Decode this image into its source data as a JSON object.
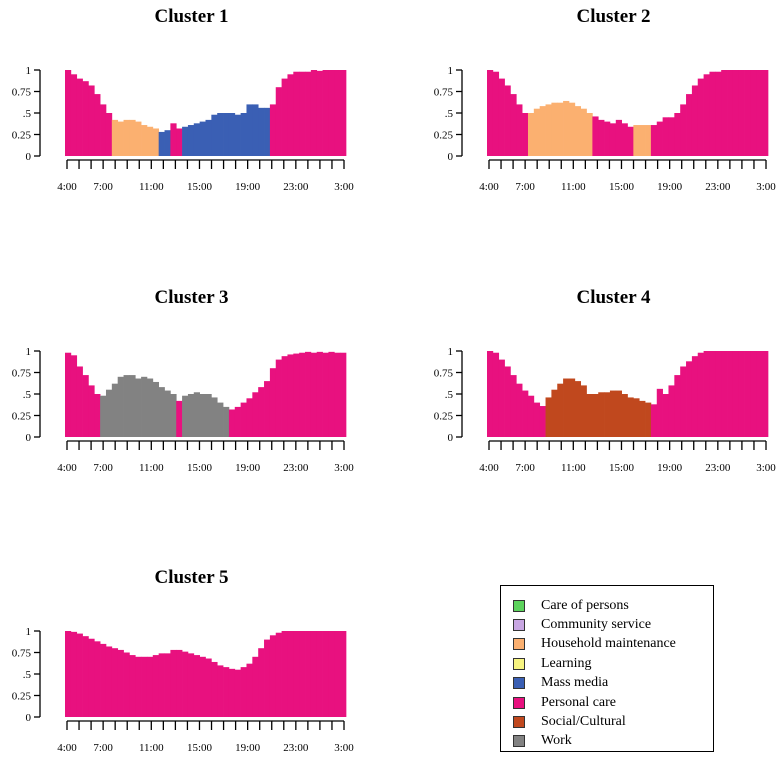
{
  "chart_data": {
    "type": "bar",
    "stacked_fill": true,
    "x": [
      "4:00",
      "4:30",
      "5:00",
      "5:30",
      "6:00",
      "6:30",
      "7:00",
      "7:30",
      "8:00",
      "8:30",
      "9:00",
      "9:30",
      "10:00",
      "10:30",
      "11:00",
      "11:30",
      "12:00",
      "12:30",
      "13:00",
      "13:30",
      "14:00",
      "14:30",
      "15:00",
      "15:30",
      "16:00",
      "16:30",
      "17:00",
      "17:30",
      "18:00",
      "18:30",
      "19:00",
      "19:30",
      "20:00",
      "20:30",
      "21:00",
      "21:30",
      "22:00",
      "22:30",
      "23:00",
      "23:30",
      "0:00",
      "0:30",
      "1:00",
      "1:30",
      "2:00",
      "2:30",
      "3:00",
      "3:30"
    ],
    "xtick_labels": [
      "4:00",
      "7:00",
      "11:00",
      "15:00",
      "19:00",
      "23:00",
      "3:00"
    ],
    "ytick_labels": [
      "1",
      "0.75",
      ".5",
      "0.25",
      "0"
    ],
    "ylim": [
      0,
      1
    ],
    "colors": {
      "Care of persons": "#5cd35c",
      "Community service": "#c8a6e2",
      "Household maintenance": "#fbb070",
      "Learning": "#f7f480",
      "Mass media": "#3a5fb4",
      "Personal care": "#e8117f",
      "Social/Cultural": "#c0481e",
      "Work": "#828282"
    },
    "legend": {
      "position": "bottom-right",
      "items": [
        "Care of persons",
        "Community service",
        "Household maintenance",
        "Learning",
        "Mass media",
        "Personal care",
        "Social/Cultural",
        "Work"
      ]
    },
    "panels": [
      {
        "title": "Cluster 1",
        "values": [
          1,
          0.95,
          0.9,
          0.87,
          0.82,
          0.72,
          0.6,
          0.5,
          0.42,
          0.4,
          0.42,
          0.42,
          0.4,
          0.36,
          0.34,
          0.32,
          0.28,
          0.3,
          0.38,
          0.32,
          0.34,
          0.36,
          0.38,
          0.4,
          0.42,
          0.48,
          0.5,
          0.5,
          0.5,
          0.48,
          0.5,
          0.6,
          0.6,
          0.56,
          0.56,
          0.6,
          0.8,
          0.9,
          0.95,
          0.98,
          0.98,
          0.98,
          1,
          0.99,
          1,
          1,
          1,
          1
        ],
        "activities": [
          "Personal care",
          "Personal care",
          "Personal care",
          "Personal care",
          "Personal care",
          "Personal care",
          "Personal care",
          "Personal care",
          "Household maintenance",
          "Household maintenance",
          "Household maintenance",
          "Household maintenance",
          "Household maintenance",
          "Household maintenance",
          "Household maintenance",
          "Household maintenance",
          "Mass media",
          "Mass media",
          "Personal care",
          "Personal care",
          "Mass media",
          "Mass media",
          "Mass media",
          "Mass media",
          "Mass media",
          "Mass media",
          "Mass media",
          "Mass media",
          "Mass media",
          "Mass media",
          "Mass media",
          "Mass media",
          "Mass media",
          "Mass media",
          "Mass media",
          "Personal care",
          "Personal care",
          "Personal care",
          "Personal care",
          "Personal care",
          "Personal care",
          "Personal care",
          "Personal care",
          "Personal care",
          "Personal care",
          "Personal care",
          "Personal care",
          "Personal care"
        ]
      },
      {
        "title": "Cluster 2",
        "values": [
          1,
          0.98,
          0.9,
          0.82,
          0.72,
          0.6,
          0.5,
          0.5,
          0.55,
          0.58,
          0.6,
          0.62,
          0.62,
          0.64,
          0.62,
          0.58,
          0.55,
          0.5,
          0.46,
          0.42,
          0.4,
          0.38,
          0.42,
          0.38,
          0.34,
          0.36,
          0.36,
          0.36,
          0.36,
          0.4,
          0.45,
          0.45,
          0.5,
          0.6,
          0.72,
          0.82,
          0.9,
          0.95,
          0.98,
          0.98,
          1,
          1,
          1,
          1,
          1,
          1,
          1,
          1
        ],
        "activities": [
          "Personal care",
          "Personal care",
          "Personal care",
          "Personal care",
          "Personal care",
          "Personal care",
          "Personal care",
          "Household maintenance",
          "Household maintenance",
          "Household maintenance",
          "Household maintenance",
          "Household maintenance",
          "Household maintenance",
          "Household maintenance",
          "Household maintenance",
          "Household maintenance",
          "Household maintenance",
          "Household maintenance",
          "Personal care",
          "Personal care",
          "Personal care",
          "Personal care",
          "Personal care",
          "Personal care",
          "Personal care",
          "Household maintenance",
          "Household maintenance",
          "Household maintenance",
          "Personal care",
          "Personal care",
          "Personal care",
          "Personal care",
          "Personal care",
          "Personal care",
          "Personal care",
          "Personal care",
          "Personal care",
          "Personal care",
          "Personal care",
          "Personal care",
          "Personal care",
          "Personal care",
          "Personal care",
          "Personal care",
          "Personal care",
          "Personal care",
          "Personal care",
          "Personal care"
        ]
      },
      {
        "title": "Cluster 3",
        "values": [
          0.98,
          0.95,
          0.82,
          0.72,
          0.6,
          0.5,
          0.48,
          0.55,
          0.62,
          0.7,
          0.72,
          0.72,
          0.68,
          0.7,
          0.68,
          0.64,
          0.58,
          0.54,
          0.5,
          0.42,
          0.48,
          0.5,
          0.52,
          0.5,
          0.5,
          0.46,
          0.4,
          0.35,
          0.32,
          0.35,
          0.4,
          0.45,
          0.52,
          0.58,
          0.65,
          0.8,
          0.9,
          0.94,
          0.96,
          0.97,
          0.98,
          0.99,
          0.98,
          0.99,
          0.98,
          0.99,
          0.98,
          0.98
        ],
        "activities": [
          "Personal care",
          "Personal care",
          "Personal care",
          "Personal care",
          "Personal care",
          "Personal care",
          "Work",
          "Work",
          "Work",
          "Work",
          "Work",
          "Work",
          "Work",
          "Work",
          "Work",
          "Work",
          "Work",
          "Work",
          "Work",
          "Personal care",
          "Work",
          "Work",
          "Work",
          "Work",
          "Work",
          "Work",
          "Work",
          "Work",
          "Personal care",
          "Personal care",
          "Personal care",
          "Personal care",
          "Personal care",
          "Personal care",
          "Personal care",
          "Personal care",
          "Personal care",
          "Personal care",
          "Personal care",
          "Personal care",
          "Personal care",
          "Personal care",
          "Personal care",
          "Personal care",
          "Personal care",
          "Personal care",
          "Personal care",
          "Personal care"
        ]
      },
      {
        "title": "Cluster 4",
        "values": [
          1,
          0.98,
          0.9,
          0.82,
          0.72,
          0.62,
          0.54,
          0.48,
          0.4,
          0.36,
          0.46,
          0.55,
          0.62,
          0.68,
          0.68,
          0.65,
          0.6,
          0.5,
          0.5,
          0.52,
          0.52,
          0.54,
          0.54,
          0.5,
          0.46,
          0.45,
          0.42,
          0.4,
          0.38,
          0.56,
          0.5,
          0.6,
          0.72,
          0.82,
          0.88,
          0.94,
          0.98,
          1,
          1,
          1,
          1,
          1,
          1,
          1,
          1,
          1,
          1,
          1
        ],
        "activities": [
          "Personal care",
          "Personal care",
          "Personal care",
          "Personal care",
          "Personal care",
          "Personal care",
          "Personal care",
          "Personal care",
          "Personal care",
          "Personal care",
          "Social/Cultural",
          "Social/Cultural",
          "Social/Cultural",
          "Social/Cultural",
          "Social/Cultural",
          "Social/Cultural",
          "Social/Cultural",
          "Social/Cultural",
          "Social/Cultural",
          "Social/Cultural",
          "Social/Cultural",
          "Social/Cultural",
          "Social/Cultural",
          "Social/Cultural",
          "Social/Cultural",
          "Social/Cultural",
          "Social/Cultural",
          "Social/Cultural",
          "Personal care",
          "Personal care",
          "Personal care",
          "Personal care",
          "Personal care",
          "Personal care",
          "Personal care",
          "Personal care",
          "Personal care",
          "Personal care",
          "Personal care",
          "Personal care",
          "Personal care",
          "Personal care",
          "Personal care",
          "Personal care",
          "Personal care",
          "Personal care",
          "Personal care",
          "Personal care"
        ]
      },
      {
        "title": "Cluster 5",
        "values": [
          1,
          0.99,
          0.97,
          0.94,
          0.91,
          0.88,
          0.85,
          0.82,
          0.8,
          0.78,
          0.75,
          0.72,
          0.7,
          0.7,
          0.7,
          0.72,
          0.74,
          0.74,
          0.78,
          0.78,
          0.76,
          0.74,
          0.72,
          0.7,
          0.68,
          0.64,
          0.6,
          0.58,
          0.56,
          0.55,
          0.58,
          0.62,
          0.7,
          0.8,
          0.9,
          0.95,
          0.98,
          1,
          1,
          1,
          1,
          1,
          1,
          1,
          1,
          1,
          1,
          1
        ],
        "activities": [
          "Personal care",
          "Personal care",
          "Personal care",
          "Personal care",
          "Personal care",
          "Personal care",
          "Personal care",
          "Personal care",
          "Personal care",
          "Personal care",
          "Personal care",
          "Personal care",
          "Personal care",
          "Personal care",
          "Personal care",
          "Personal care",
          "Personal care",
          "Personal care",
          "Personal care",
          "Personal care",
          "Personal care",
          "Personal care",
          "Personal care",
          "Personal care",
          "Personal care",
          "Personal care",
          "Personal care",
          "Personal care",
          "Personal care",
          "Personal care",
          "Personal care",
          "Personal care",
          "Personal care",
          "Personal care",
          "Personal care",
          "Personal care",
          "Personal care",
          "Personal care",
          "Personal care",
          "Personal care",
          "Personal care",
          "Personal care",
          "Personal care",
          "Personal care",
          "Personal care",
          "Personal care",
          "Personal care",
          "Personal care"
        ]
      }
    ]
  }
}
